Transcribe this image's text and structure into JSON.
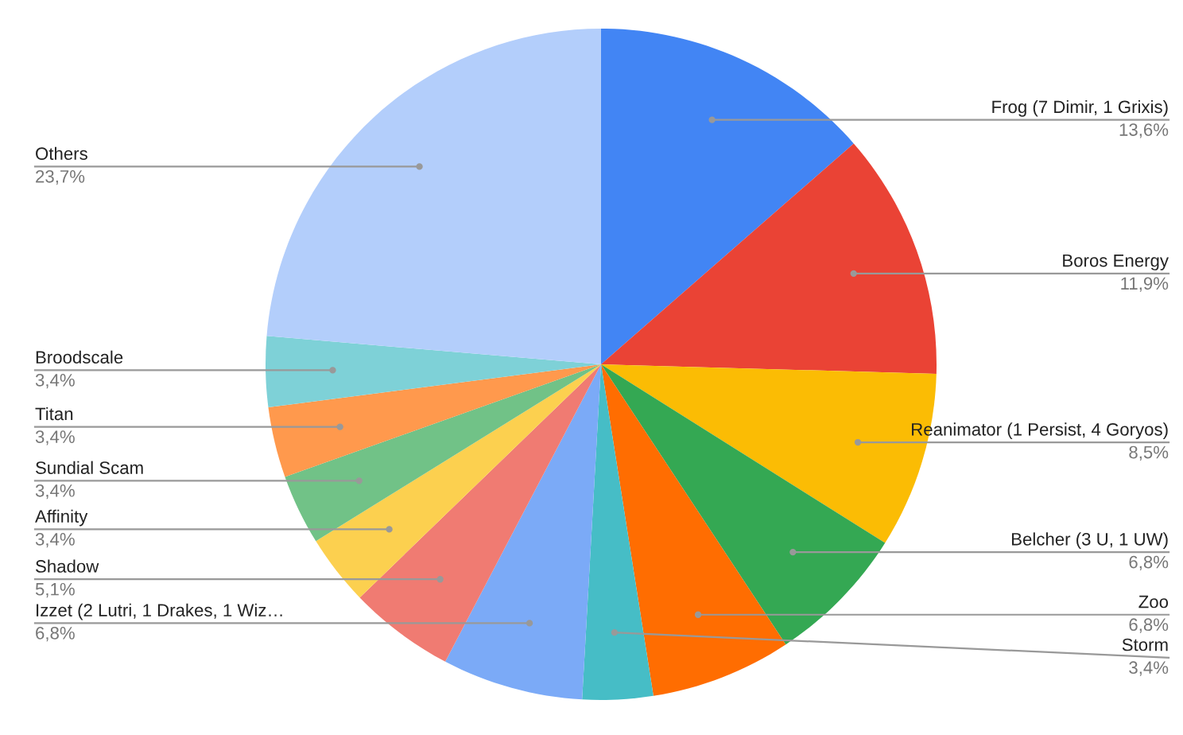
{
  "chart_data": {
    "type": "pie",
    "categories": [
      "Frog (7 Dimir, 1 Grixis)",
      "Boros Energy",
      "Reanimator (1 Persist, 4 Goryos)",
      "Belcher (3 U, 1 UW)",
      "Zoo",
      "Storm",
      "Izzet (2 Lutri, 1 Drakes, 1 Wiz…",
      "Shadow",
      "Affinity",
      "Sundial Scam",
      "Titan",
      "Broodscale",
      "Others"
    ],
    "values": [
      13.6,
      11.9,
      8.5,
      6.8,
      6.8,
      3.4,
      6.8,
      5.1,
      3.4,
      3.4,
      3.4,
      3.4,
      23.7
    ],
    "value_labels": [
      "13,6%",
      "11,9%",
      "8,5%",
      "6,8%",
      "6,8%",
      "3,4%",
      "6,8%",
      "5,1%",
      "3,4%",
      "3,4%",
      "3,4%",
      "3,4%",
      "23,7%"
    ],
    "colors": [
      "#4285f4",
      "#ea4335",
      "#fbbc04",
      "#34a853",
      "#ff6d01",
      "#46bdc6",
      "#7baaf7",
      "#f07b72",
      "#fcd04f",
      "#71c287",
      "#ff994d",
      "#7ed1d7",
      "#b3cefb"
    ],
    "legend": false
  }
}
